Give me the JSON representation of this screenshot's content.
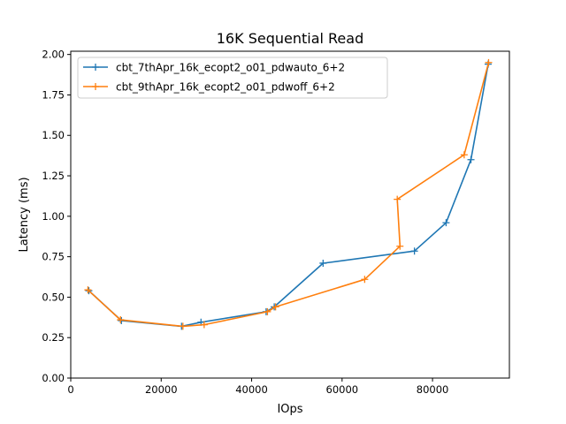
{
  "chart_data": {
    "type": "line",
    "title": "16K  Sequential Read",
    "xlabel": "IOps",
    "ylabel": "Latency (ms)",
    "xlim": [
      0,
      97000
    ],
    "ylim": [
      0,
      2.02
    ],
    "xticks": [
      0,
      20000,
      40000,
      60000,
      80000
    ],
    "yticks": [
      0.0,
      0.25,
      0.5,
      0.75,
      1.0,
      1.25,
      1.5,
      1.75,
      2.0
    ],
    "xtick_labels": [
      "0",
      "20000",
      "40000",
      "60000",
      "80000"
    ],
    "ytick_labels": [
      "0.00",
      "0.25",
      "0.50",
      "0.75",
      "1.00",
      "1.25",
      "1.50",
      "1.75",
      "2.00"
    ],
    "grid": false,
    "legend_position": "top-left",
    "series": [
      {
        "name": "cbt_7thApr_16k_ecopt2_o01_pdwauto_6+2",
        "color": "#1f77b4",
        "marker": "plus",
        "x": [
          4000,
          11200,
          24500,
          28800,
          43200,
          45000,
          55800,
          76000,
          83000,
          88500,
          92300
        ],
        "y": [
          0.54,
          0.355,
          0.32,
          0.345,
          0.41,
          0.44,
          0.71,
          0.785,
          0.96,
          1.35,
          1.94
        ]
      },
      {
        "name": "cbt_9thApr_16k_ecopt2_o01_pdwoff_6+2",
        "color": "#ff7f0e",
        "marker": "plus",
        "x": [
          3800,
          11000,
          24800,
          29500,
          43500,
          45300,
          65000,
          72800,
          72200,
          87000,
          92400
        ],
        "y": [
          0.545,
          0.36,
          0.32,
          0.33,
          0.41,
          0.44,
          0.61,
          0.815,
          1.105,
          1.38,
          1.95
        ]
      }
    ]
  }
}
